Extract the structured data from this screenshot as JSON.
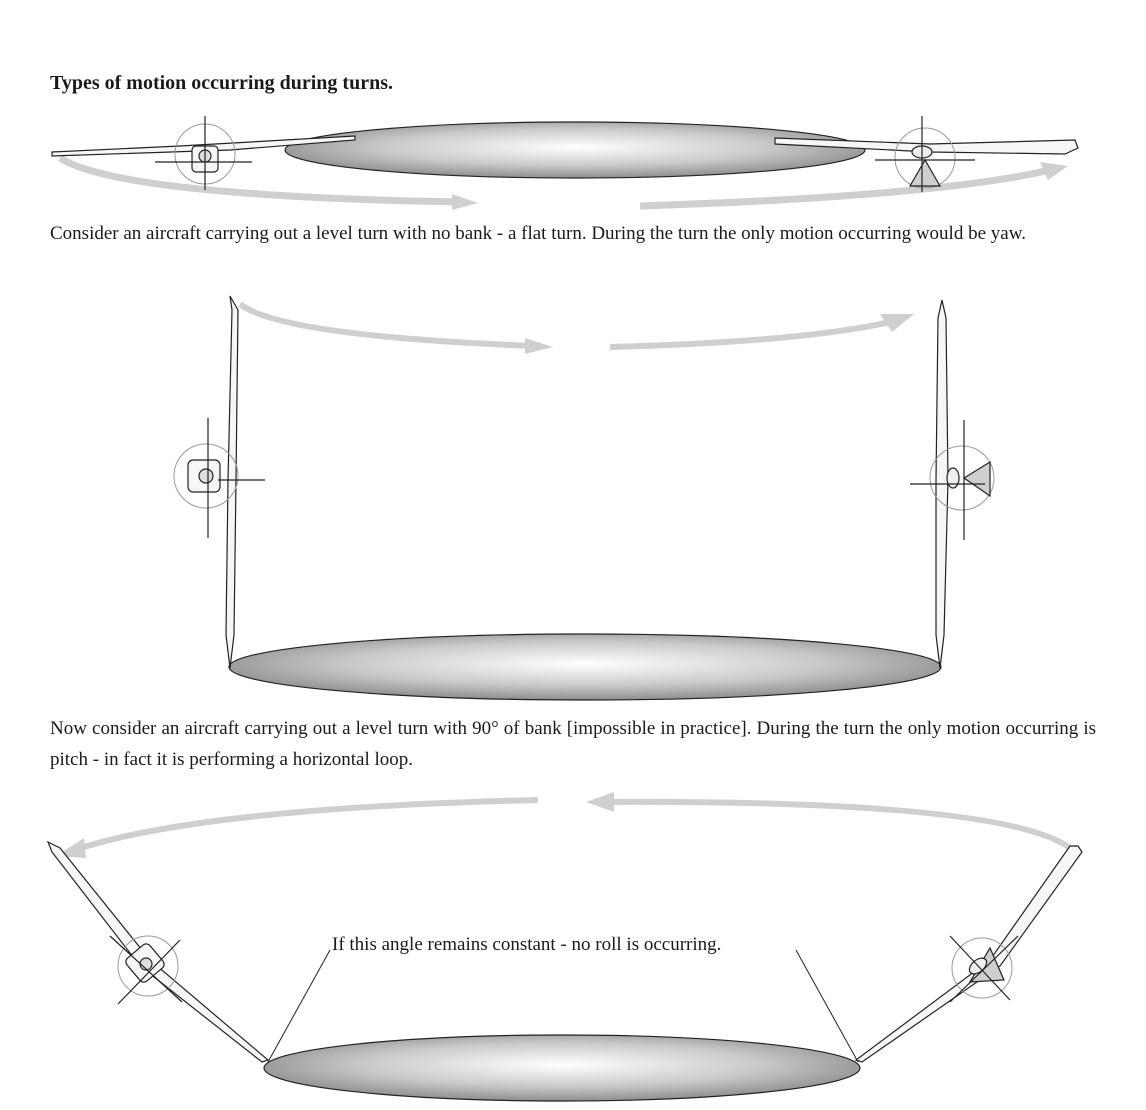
{
  "page": {
    "title": "Types of motion occurring during turns.",
    "paragraphs": [
      "Consider an aircraft carrying out a level turn with no bank - a flat turn.  During the turn the only motion occurring would be yaw.",
      "Now consider an aircraft carrying out a level turn with 90° of bank [impossible in practice].   During the turn the only motion occurring is pitch - in fact it is performing a horizontal loop."
    ],
    "callout": "If this angle remains constant - no roll is occurring."
  },
  "colors": {
    "arrow": "#cfcfcf",
    "ink": "#222222",
    "disc_dark": "#8f8f8f",
    "disc_light": "#ffffff"
  }
}
